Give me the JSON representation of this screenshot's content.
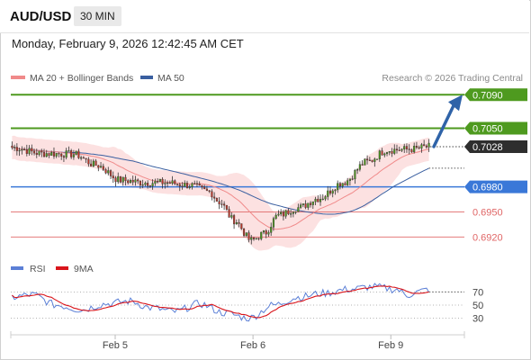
{
  "header": {
    "symbol": "AUD/USD",
    "timeframe": "30 MIN"
  },
  "datetime": "Monday, February 9, 2026 12:42:45 AM CET",
  "legend": {
    "ma20_label": "MA 20 + Bollinger Bands",
    "ma50_label": "MA 50",
    "ma20_color": "#f08a8a",
    "ma50_color": "#3a5fa0"
  },
  "credit": "Research © 2026 Trading Central",
  "colors": {
    "green": "#4e9a1f",
    "blue": "#3a78d8",
    "red": "#e06666",
    "arrow": "#2f63a8",
    "up_candle": "#4e9a1f",
    "down_candle": "#c0392b",
    "bb_fill": "#fbdcdc",
    "rsi_line": "#5b7fd6",
    "rsi_ma": "#d9151b"
  },
  "chart_data": [
    {
      "type": "candlestick",
      "y_scale": {
        "price_top": 0.71,
        "price_bottom": 0.69
      },
      "levels": [
        {
          "value": 0.709,
          "label": "0.7090",
          "kind": "resistance",
          "style": "badge"
        },
        {
          "value": 0.705,
          "label": "0.7050",
          "kind": "resistance",
          "style": "badge"
        },
        {
          "value": 0.7028,
          "label": "0.7028",
          "kind": "last",
          "style": "dark-badge"
        },
        {
          "value": 0.698,
          "label": "0.6980",
          "kind": "pivot",
          "style": "badge"
        },
        {
          "value": 0.695,
          "label": "0.6950",
          "kind": "support",
          "style": "text"
        },
        {
          "value": 0.692,
          "label": "0.6920",
          "kind": "support",
          "style": "text"
        }
      ],
      "x_ticks": [
        {
          "pos": 0.25,
          "label": "Feb 5"
        },
        {
          "pos": 0.58,
          "label": "Feb 6"
        },
        {
          "pos": 0.91,
          "label": "Feb 9"
        }
      ],
      "close_anchors": [
        [
          0,
          0.7027
        ],
        [
          12,
          0.702
        ],
        [
          25,
          0.7019
        ],
        [
          34,
          0.7006
        ],
        [
          44,
          0.6988
        ],
        [
          54,
          0.6985
        ],
        [
          62,
          0.6985
        ],
        [
          72,
          0.6982
        ],
        [
          80,
          0.6974
        ],
        [
          84,
          0.6962
        ],
        [
          90,
          0.694
        ],
        [
          97,
          0.6916
        ],
        [
          102,
          0.6924
        ],
        [
          108,
          0.6946
        ],
        [
          116,
          0.6955
        ],
        [
          124,
          0.6966
        ],
        [
          134,
          0.6985
        ],
        [
          144,
          0.701
        ],
        [
          152,
          0.7024
        ],
        [
          162,
          0.7025
        ],
        [
          169,
          0.7028
        ]
      ],
      "candle_count": 170
    },
    {
      "type": "line",
      "name": "RSI",
      "legend": [
        "RSI",
        "9MA"
      ],
      "y_ticks": [
        70,
        50,
        30
      ],
      "ylim": [
        10,
        90
      ],
      "rsi_anchors": [
        [
          0,
          62
        ],
        [
          8,
          66
        ],
        [
          18,
          50
        ],
        [
          28,
          43
        ],
        [
          38,
          52
        ],
        [
          48,
          56
        ],
        [
          56,
          46
        ],
        [
          66,
          40
        ],
        [
          76,
          52
        ],
        [
          86,
          38
        ],
        [
          96,
          30
        ],
        [
          106,
          50
        ],
        [
          116,
          62
        ],
        [
          126,
          68
        ],
        [
          136,
          74
        ],
        [
          146,
          78
        ],
        [
          156,
          74
        ],
        [
          160,
          65
        ],
        [
          164,
          70
        ],
        [
          169,
          74
        ]
      ]
    }
  ]
}
